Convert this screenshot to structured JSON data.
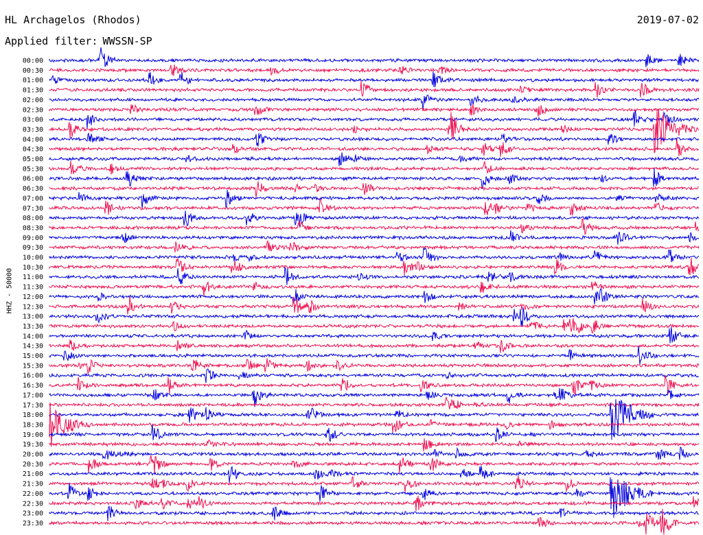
{
  "header": {
    "station": "HL Archagelos (Rhodos)",
    "filter_label": "Applied filter:",
    "filter_value": "WWSSN-SP",
    "date": "2019-07-02"
  },
  "colors": {
    "even": "#0000dd",
    "odd": "#ee1050"
  },
  "chart_data": {
    "type": "line",
    "title": "HL Archagelos (Rhodos)",
    "subtitle": "2019-07-02",
    "ylabel": "HHZ - 50000",
    "xlabel": "",
    "series": [
      {
        "name": "",
        "values": []
      }
    ],
    "row_labels": [
      "00:00",
      "00:30",
      "01:00",
      "01:30",
      "02:00",
      "02:30",
      "03:00",
      "03:30",
      "04:00",
      "04:30",
      "05:00",
      "05:30",
      "06:00",
      "06:30",
      "07:00",
      "07:30",
      "08:00",
      "08:30",
      "09:00",
      "09:30",
      "10:00",
      "10:30",
      "11:00",
      "11:30",
      "12:00",
      "12:30",
      "13:00",
      "13:30",
      "14:00",
      "14:30",
      "15:00",
      "15:30",
      "16:00",
      "16:30",
      "17:00",
      "17:30",
      "18:00",
      "18:30",
      "19:00",
      "19:30",
      "20:00",
      "20:30",
      "21:00",
      "21:30",
      "22:00",
      "22:30",
      "23:00",
      "23:30"
    ],
    "trace_colors": [
      "blue",
      "red"
    ],
    "major_events": [
      {
        "row": "03:30",
        "minute": 28,
        "note": "large spike"
      },
      {
        "row": "18:00",
        "minute": 26,
        "note": "large event"
      },
      {
        "row": "18:30",
        "minute": 0,
        "note": "large event coda"
      },
      {
        "row": "22:00",
        "minute": 26,
        "note": "burst"
      }
    ]
  }
}
